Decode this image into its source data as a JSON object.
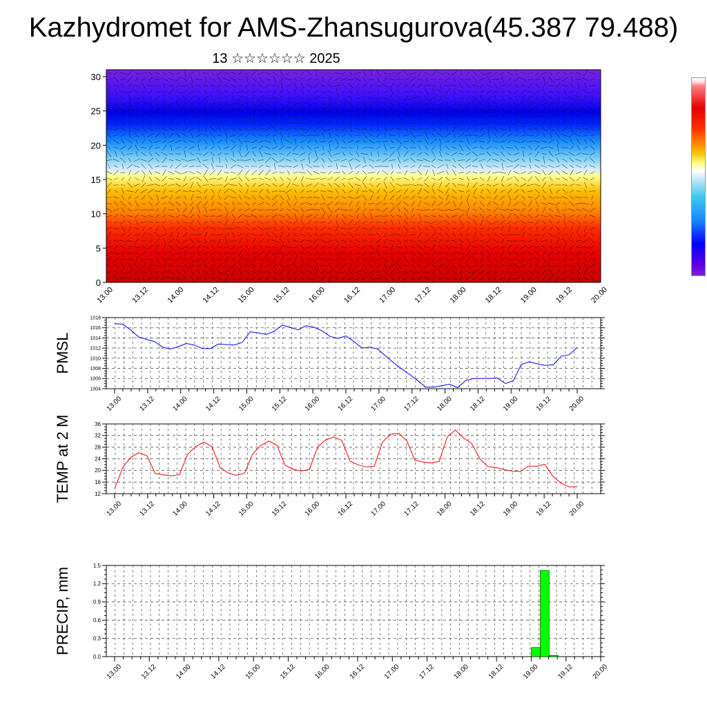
{
  "title": "Kazhydromet for AMS-Zhansugurova(45.387 79.488)",
  "subtitle": "13 ☆☆☆☆☆☆ 2025",
  "colors": {
    "pmsl_line": "#0000ff",
    "temp_line": "#ff0000",
    "precip_bar": "#00ff00",
    "grid": "#555555"
  },
  "time_ticks": [
    "13.00",
    "13.12",
    "14.00",
    "14.12",
    "15.00",
    "15.12",
    "16.00",
    "16.12",
    "17.00",
    "17.12",
    "18.00",
    "18.12",
    "19.00",
    "19.12",
    "20.00"
  ],
  "chart_data": [
    {
      "type": "heatmap",
      "ylim": [
        0,
        30
      ],
      "yticks": [
        "0",
        "5",
        "10",
        "15",
        "20",
        "25",
        "30"
      ],
      "xlabel": "",
      "ylabel": "",
      "legend": "right colorbar (no labels)"
    },
    {
      "type": "line",
      "ylabel": "PMSL",
      "ylim": [
        1004,
        1018
      ],
      "yticks": [
        "1004",
        "1006",
        "1008",
        "1010",
        "1012",
        "1014",
        "1016",
        "1018"
      ],
      "grid": true,
      "series": [
        {
          "values": [
            1016.8,
            1016.7,
            1015.6,
            1014.2,
            1013.7,
            1013.3,
            1012.2,
            1011.8,
            1012.3,
            1012.9,
            1012.6,
            1011.9,
            1011.9,
            1012.8,
            1012.7,
            1012.6,
            1013.1,
            1015.2,
            1015.0,
            1014.7,
            1015.3,
            1016.5,
            1016.1,
            1015.6,
            1016.4,
            1016.1,
            1015.4,
            1014.3,
            1013.9,
            1014.4,
            1013.3,
            1012.0,
            1012.2,
            1011.8,
            1010.4,
            1009.1,
            1007.9,
            1006.8,
            1005.6,
            1004.3,
            1004.3,
            1004.6,
            1004.9,
            1004.2,
            1005.6,
            1006.0,
            1006.0,
            1006.0,
            1006.1,
            1005.0,
            1005.6,
            1008.8,
            1009.3,
            1008.9,
            1008.6,
            1008.7,
            1010.4,
            1010.7,
            1012.1
          ]
        }
      ]
    },
    {
      "type": "line",
      "ylabel": "TEMP at 2 M",
      "ylim": [
        12,
        36
      ],
      "yticks": [
        "12",
        "16",
        "20",
        "24",
        "28",
        "32",
        "36"
      ],
      "grid": true,
      "series": [
        {
          "values": [
            13.7,
            21.0,
            24.5,
            26.1,
            25.0,
            18.9,
            18.5,
            18.1,
            18.6,
            25.6,
            28.2,
            29.7,
            28.2,
            21.0,
            19.1,
            18.3,
            19.0,
            25.6,
            28.6,
            30.1,
            28.7,
            21.8,
            20.4,
            19.8,
            20.3,
            28.0,
            30.5,
            31.5,
            30.3,
            23.2,
            21.9,
            21.2,
            21.4,
            29.7,
            32.4,
            32.8,
            30.2,
            23.5,
            22.9,
            22.6,
            23.1,
            31.6,
            33.9,
            31.2,
            29.3,
            24.0,
            21.3,
            21.0,
            20.3,
            19.8,
            19.6,
            21.5,
            21.4,
            22.1,
            18.0,
            15.6,
            14.3,
            14.4
          ]
        }
      ]
    },
    {
      "type": "bar",
      "ylabel": "PRECIP, mm",
      "ylim": [
        0,
        1.5
      ],
      "yticks": [
        "0.0",
        "0.3",
        "0.6",
        "0.9",
        "1.2",
        "1.5"
      ],
      "grid": true,
      "x": [
        "19.00",
        "19.03",
        "19.06"
      ],
      "values": [
        0.15,
        1.42,
        0.02
      ]
    }
  ]
}
